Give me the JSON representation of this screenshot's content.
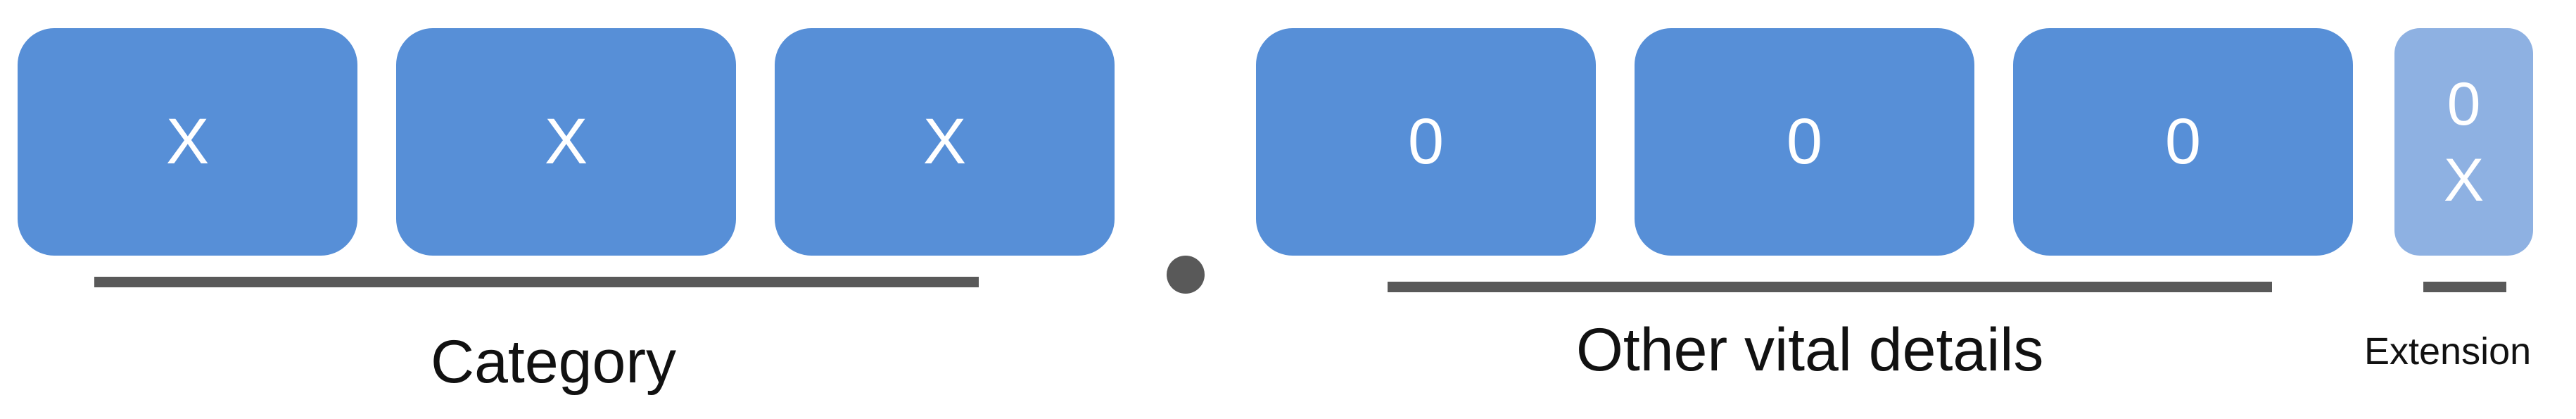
{
  "colors": {
    "box": "#578fd7",
    "extension_box": "#8eb1e2",
    "line": "#595959"
  },
  "category": {
    "boxes": [
      "X",
      "X",
      "X"
    ],
    "label": "Category"
  },
  "separator": {
    "name": "dot-separator"
  },
  "vital_details": {
    "boxes": [
      "0",
      "0",
      "0"
    ],
    "label": "Other vital details"
  },
  "extension": {
    "top": "0",
    "bottom": "X",
    "label": "Extension"
  }
}
